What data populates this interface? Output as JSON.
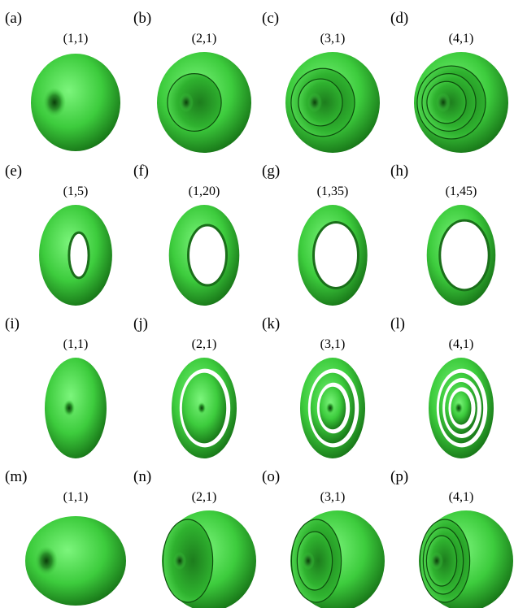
{
  "panels": [
    {
      "letter": "(a)",
      "label": "(1,1)",
      "kind": "dimple",
      "rings": 0
    },
    {
      "letter": "(b)",
      "label": "(2,1)",
      "kind": "nested",
      "rings": 1
    },
    {
      "letter": "(c)",
      "label": "(3,1)",
      "kind": "nested",
      "rings": 2
    },
    {
      "letter": "(d)",
      "label": "(4,1)",
      "kind": "nested",
      "rings": 3
    },
    {
      "letter": "(e)",
      "label": "(1,5)",
      "kind": "torus",
      "hole": 0.18
    },
    {
      "letter": "(f)",
      "label": "(1,20)",
      "kind": "torus",
      "hole": 0.45
    },
    {
      "letter": "(g)",
      "label": "(1,35)",
      "kind": "torus",
      "hole": 0.55
    },
    {
      "letter": "(h)",
      "label": "(1,45)",
      "kind": "torus",
      "hole": 0.62
    },
    {
      "letter": "(i)",
      "label": "(1,1)",
      "kind": "flatdimple",
      "rings": 0
    },
    {
      "letter": "(j)",
      "label": "(2,1)",
      "kind": "flatnested",
      "rings": 1
    },
    {
      "letter": "(k)",
      "label": "(3,1)",
      "kind": "flatnested",
      "rings": 2
    },
    {
      "letter": "(l)",
      "label": "(4,1)",
      "kind": "flatnested",
      "rings": 3
    },
    {
      "letter": "(m)",
      "label": "(1,1)",
      "kind": "egg",
      "rings": 0
    },
    {
      "letter": "(n)",
      "label": "(2,1)",
      "kind": "eggnested",
      "rings": 1
    },
    {
      "letter": "(o)",
      "label": "(3,1)",
      "kind": "eggnested",
      "rings": 2
    },
    {
      "letter": "(p)",
      "label": "(4,1)",
      "kind": "eggnested",
      "rings": 3
    }
  ],
  "colors": {
    "light": "#6ef06e",
    "mid": "#2fc02f",
    "dark": "#0b5a0b",
    "hole": "#ffffff"
  }
}
